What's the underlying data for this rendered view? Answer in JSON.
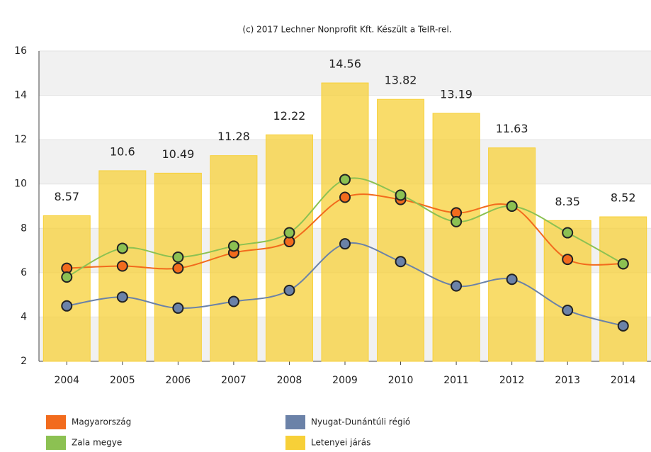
{
  "chart_data": {
    "type": "bar+line",
    "title": "(c) 2017 Lechner Nonprofit Kft. Készült a TeIR-rel.",
    "categories": [
      "2004",
      "2005",
      "2006",
      "2007",
      "2008",
      "2009",
      "2010",
      "2011",
      "2012",
      "2013",
      "2014"
    ],
    "ylim": [
      2,
      16
    ],
    "yticks": [
      2,
      4,
      6,
      8,
      10,
      12,
      14,
      16
    ],
    "grid": true,
    "legend": "bottom",
    "series": [
      {
        "name": "Magyarország",
        "color": "#f26b1d",
        "kind": "line",
        "values": [
          6.2,
          6.3,
          6.2,
          6.9,
          7.4,
          9.4,
          9.3,
          8.7,
          9.0,
          6.6,
          6.4
        ]
      },
      {
        "name": "Nyugat-Dunántúli régió",
        "color": "#6b82a8",
        "kind": "line",
        "values": [
          4.5,
          4.9,
          4.4,
          4.7,
          5.2,
          7.3,
          6.5,
          5.4,
          5.7,
          4.3,
          3.6
        ]
      },
      {
        "name": "Zala megye",
        "color": "#8cc152",
        "kind": "line",
        "values": [
          5.8,
          7.1,
          6.7,
          7.2,
          7.8,
          10.2,
          9.5,
          8.3,
          9.0,
          7.8,
          6.4
        ]
      },
      {
        "name": "Letenyei járás",
        "color": "#f7d038",
        "kind": "bar",
        "values": [
          8.57,
          10.6,
          10.49,
          11.28,
          12.22,
          14.56,
          13.82,
          13.19,
          11.63,
          8.35,
          8.52
        ]
      }
    ]
  }
}
